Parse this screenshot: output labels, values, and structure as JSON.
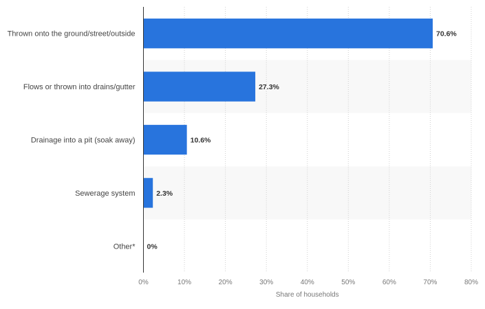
{
  "chart_data": {
    "type": "bar",
    "orientation": "horizontal",
    "categories": [
      "Thrown onto the ground/street/outside",
      "Flows or thrown into drains/gutter",
      "Drainage into a pit (soak away)",
      "Sewerage system",
      "Other*"
    ],
    "values": [
      70.6,
      27.3,
      10.6,
      2.3,
      0
    ],
    "value_labels": [
      "70.6%",
      "27.3%",
      "10.6%",
      "2.3%",
      "0%"
    ],
    "xlabel": "Share of households",
    "xlim": [
      0,
      80
    ],
    "x_ticks": [
      0,
      10,
      20,
      30,
      40,
      50,
      60,
      70,
      80
    ],
    "x_tick_labels": [
      "0%",
      "10%",
      "20%",
      "30%",
      "40%",
      "50%",
      "60%",
      "70%",
      "80%"
    ],
    "grid": "vertical dotted",
    "bar_color": "#2874dd",
    "band_color": "#f8f8f8"
  }
}
